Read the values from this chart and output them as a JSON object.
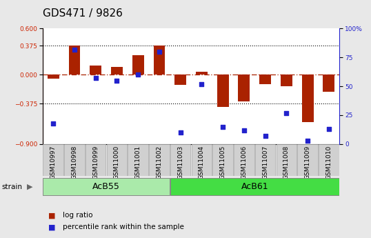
{
  "title": "GDS471 / 9826",
  "samples": [
    "GSM10997",
    "GSM10998",
    "GSM10999",
    "GSM11000",
    "GSM11001",
    "GSM11002",
    "GSM11003",
    "GSM11004",
    "GSM11005",
    "GSM11006",
    "GSM11007",
    "GSM11008",
    "GSM11009",
    "GSM11010"
  ],
  "log_ratio": [
    -0.05,
    0.38,
    0.12,
    0.1,
    0.25,
    0.38,
    -0.13,
    0.04,
    -0.42,
    -0.35,
    -0.12,
    -0.15,
    -0.62,
    -0.22
  ],
  "percentile": [
    18,
    82,
    57,
    55,
    60,
    80,
    10,
    52,
    15,
    12,
    7,
    27,
    3,
    13
  ],
  "groups": [
    {
      "label": "AcB55",
      "start": 0,
      "end": 6,
      "color": "#aaeaaa"
    },
    {
      "label": "AcB61",
      "start": 6,
      "end": 14,
      "color": "#44dd44"
    }
  ],
  "bar_color": "#aa2200",
  "dot_color": "#2222cc",
  "ylim_left": [
    -0.9,
    0.6
  ],
  "ylim_right": [
    0,
    100
  ],
  "yticks_left": [
    -0.9,
    -0.375,
    0,
    0.375,
    0.6
  ],
  "yticks_right": [
    0,
    25,
    50,
    75,
    100
  ],
  "hlines": [
    0.375,
    -0.375
  ],
  "zero_line": 0,
  "bar_width": 0.55,
  "dot_size": 20,
  "background_color": "#e8e8e8",
  "plot_bg": "#ffffff",
  "tick_bg": "#d0d0d0",
  "title_fontsize": 11,
  "tick_fontsize": 6.5,
  "group_label_fontsize": 9
}
